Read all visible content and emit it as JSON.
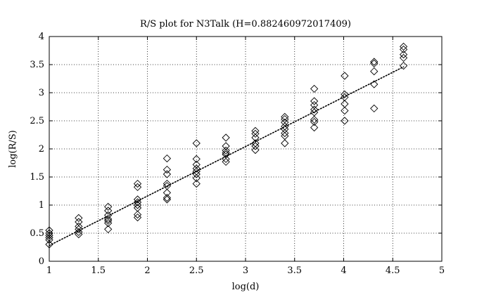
{
  "chart_data": {
    "type": "scatter",
    "title": "R/S plot for N3Talk (H=0.882460972017409)",
    "xlabel": "log(d)",
    "ylabel": "log(R/S)",
    "xlim": [
      1,
      5
    ],
    "ylim": [
      0,
      4
    ],
    "xticks": [
      1,
      1.5,
      2,
      2.5,
      3,
      3.5,
      4,
      4.5,
      5
    ],
    "xtick_labels": [
      "1",
      "1.5",
      "2",
      "2.5",
      "3",
      "3.5",
      "4",
      "4.5",
      "5"
    ],
    "yticks": [
      0,
      0.5,
      1,
      1.5,
      2,
      2.5,
      3,
      3.5,
      4
    ],
    "ytick_labels": [
      "0",
      "0.5",
      "1",
      "1.5",
      "2",
      "2.5",
      "3",
      "3.5",
      "4"
    ],
    "grid": true,
    "marker": "diamond",
    "fit_line": {
      "style": "dotted",
      "x": [
        1.0,
        4.61
      ],
      "y": [
        0.28,
        3.46
      ]
    },
    "series": [
      {
        "marker": "diamond",
        "points": [
          [
            1.0,
            0.55
          ],
          [
            1.0,
            0.5
          ],
          [
            1.0,
            0.46
          ],
          [
            1.0,
            0.42
          ],
          [
            1.0,
            0.38
          ],
          [
            1.0,
            0.3
          ],
          [
            1.3,
            0.77
          ],
          [
            1.3,
            0.7
          ],
          [
            1.3,
            0.62
          ],
          [
            1.3,
            0.57
          ],
          [
            1.3,
            0.52
          ],
          [
            1.3,
            0.48
          ],
          [
            1.6,
            0.97
          ],
          [
            1.6,
            0.9
          ],
          [
            1.6,
            0.82
          ],
          [
            1.6,
            0.75
          ],
          [
            1.6,
            0.72
          ],
          [
            1.6,
            0.68
          ],
          [
            1.6,
            0.57
          ],
          [
            1.9,
            1.38
          ],
          [
            1.9,
            1.32
          ],
          [
            1.9,
            1.1
          ],
          [
            1.9,
            1.05
          ],
          [
            1.9,
            1.0
          ],
          [
            1.9,
            0.95
          ],
          [
            1.9,
            0.83
          ],
          [
            1.9,
            0.78
          ],
          [
            2.2,
            1.83
          ],
          [
            2.2,
            1.63
          ],
          [
            2.2,
            1.55
          ],
          [
            2.2,
            1.38
          ],
          [
            2.2,
            1.34
          ],
          [
            2.2,
            1.22
          ],
          [
            2.2,
            1.13
          ],
          [
            2.2,
            1.1
          ],
          [
            2.5,
            2.1
          ],
          [
            2.5,
            1.82
          ],
          [
            2.5,
            1.72
          ],
          [
            2.5,
            1.65
          ],
          [
            2.5,
            1.6
          ],
          [
            2.5,
            1.55
          ],
          [
            2.5,
            1.48
          ],
          [
            2.5,
            1.38
          ],
          [
            2.8,
            2.2
          ],
          [
            2.8,
            2.05
          ],
          [
            2.8,
            1.97
          ],
          [
            2.8,
            1.93
          ],
          [
            2.8,
            1.9
          ],
          [
            2.8,
            1.82
          ],
          [
            2.8,
            1.77
          ],
          [
            3.1,
            2.32
          ],
          [
            3.1,
            2.27
          ],
          [
            3.1,
            2.2
          ],
          [
            3.1,
            2.1
          ],
          [
            3.1,
            2.05
          ],
          [
            3.1,
            1.98
          ],
          [
            3.4,
            2.57
          ],
          [
            3.4,
            2.53
          ],
          [
            3.4,
            2.47
          ],
          [
            3.4,
            2.4
          ],
          [
            3.4,
            2.35
          ],
          [
            3.4,
            2.28
          ],
          [
            3.4,
            2.23
          ],
          [
            3.4,
            2.1
          ],
          [
            3.7,
            3.07
          ],
          [
            3.7,
            2.85
          ],
          [
            3.7,
            2.78
          ],
          [
            3.7,
            2.7
          ],
          [
            3.7,
            2.65
          ],
          [
            3.7,
            2.52
          ],
          [
            3.7,
            2.48
          ],
          [
            3.7,
            2.38
          ],
          [
            4.01,
            3.3
          ],
          [
            4.01,
            2.97
          ],
          [
            4.01,
            2.92
          ],
          [
            4.01,
            2.8
          ],
          [
            4.01,
            2.68
          ],
          [
            4.01,
            2.5
          ],
          [
            4.31,
            3.55
          ],
          [
            4.31,
            3.52
          ],
          [
            4.31,
            3.38
          ],
          [
            4.31,
            3.15
          ],
          [
            4.31,
            2.72
          ],
          [
            4.61,
            3.82
          ],
          [
            4.61,
            3.77
          ],
          [
            4.61,
            3.68
          ],
          [
            4.61,
            3.62
          ],
          [
            4.61,
            3.48
          ]
        ]
      }
    ]
  }
}
